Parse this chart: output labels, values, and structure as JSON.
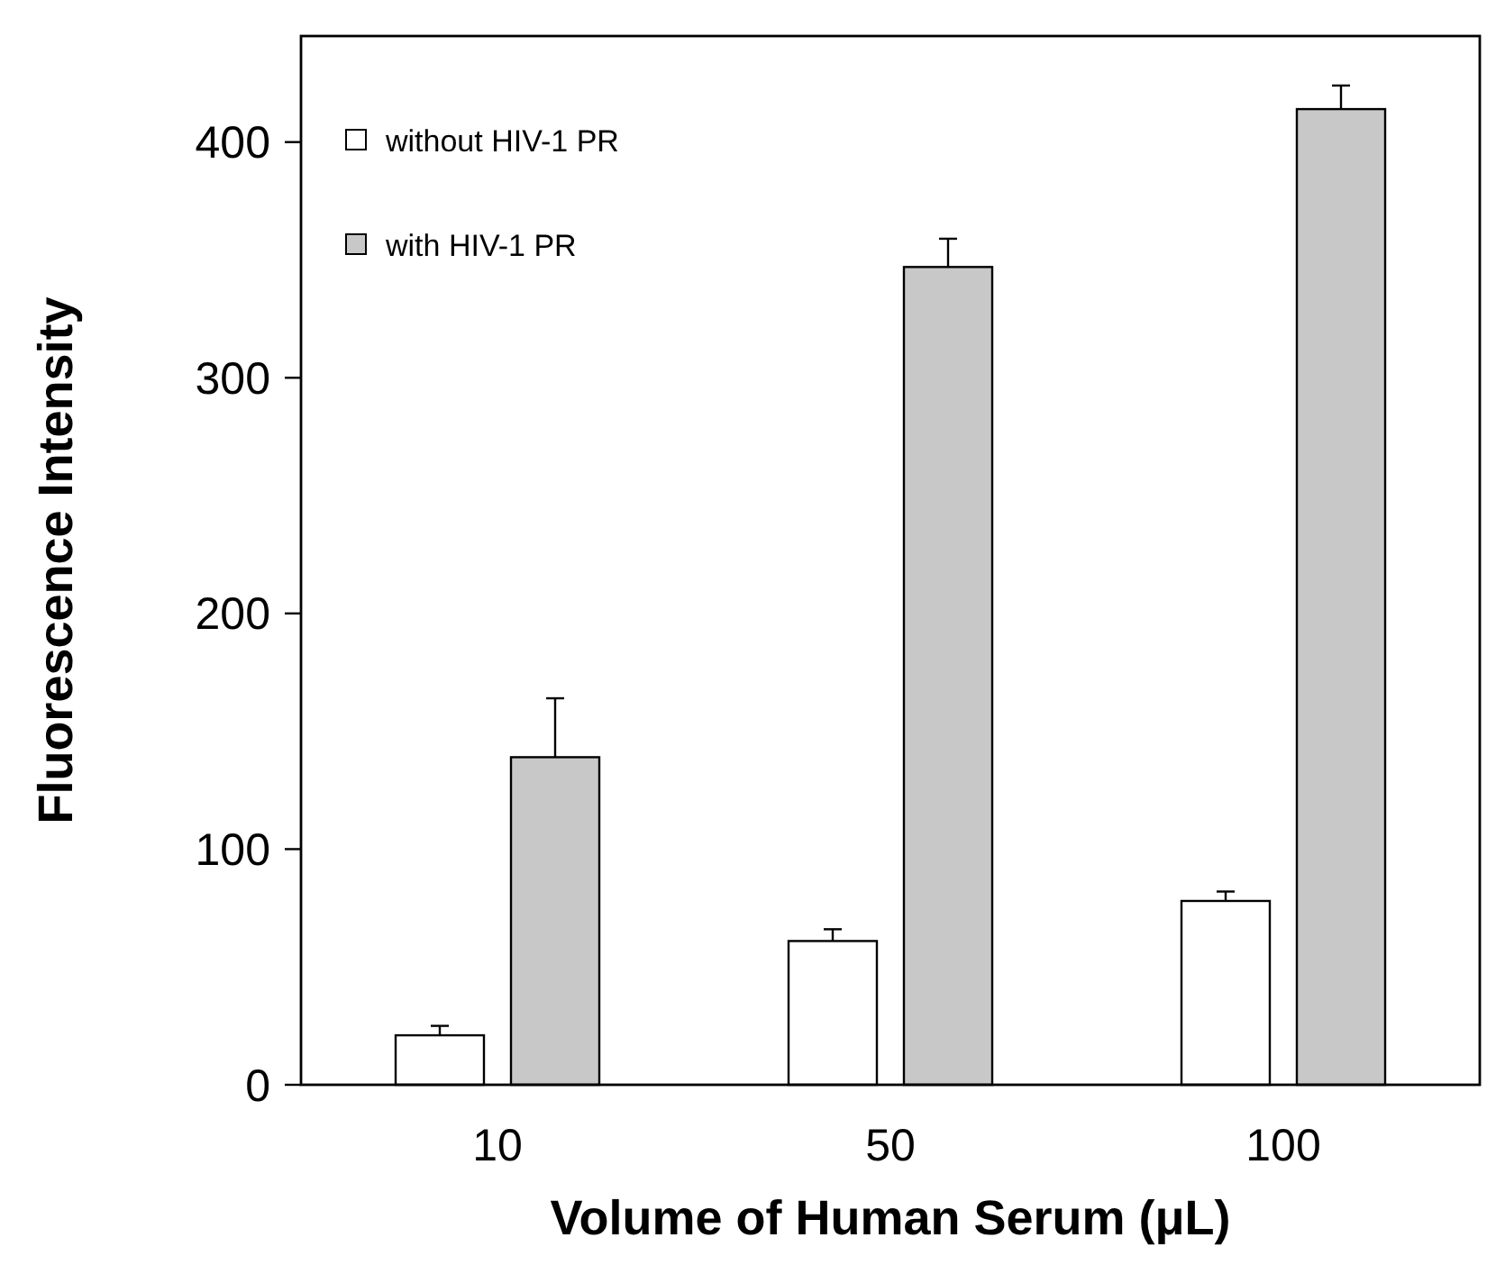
{
  "chart_data": {
    "type": "bar",
    "xlabel": "Volume of Human Serum (μL)",
    "ylabel": "Fluorescence Intensity",
    "categories": [
      "10",
      "50",
      "100"
    ],
    "series": [
      {
        "name": "without HIV-1 PR",
        "color": "#ffffff",
        "values": [
          21,
          61,
          78
        ],
        "errors": [
          4,
          5,
          4
        ]
      },
      {
        "name": "with HIV-1 PR",
        "color": "#c8c8c8",
        "values": [
          139,
          347,
          414
        ],
        "errors": [
          25,
          12,
          10
        ]
      }
    ],
    "ylim": [
      0,
      445
    ],
    "yticks": [
      0,
      100,
      200,
      300,
      400
    ],
    "grid": false,
    "legend": "top left"
  }
}
